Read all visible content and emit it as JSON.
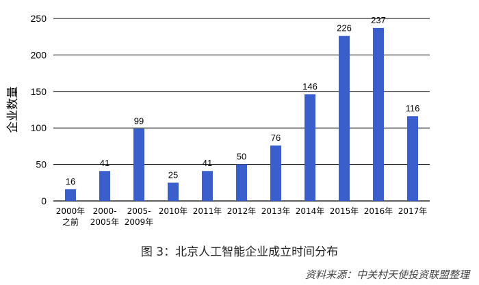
{
  "chart_data": {
    "type": "bar",
    "categories": [
      [
        "2000年",
        "之前"
      ],
      [
        "2000-",
        "2005年"
      ],
      [
        "2005-",
        "2009年"
      ],
      [
        "2010年"
      ],
      [
        "2011年"
      ],
      [
        "2012年"
      ],
      [
        "2013年"
      ],
      [
        "2014年"
      ],
      [
        "2015年"
      ],
      [
        "2016年"
      ],
      [
        "2017年"
      ]
    ],
    "values": [
      16,
      41,
      99,
      25,
      41,
      50,
      76,
      146,
      226,
      237,
      116
    ],
    "ylabel": "企业数量",
    "ylim": [
      0,
      250
    ],
    "yticks": [
      0,
      50,
      100,
      150,
      200,
      250
    ],
    "grid": true,
    "bar_color": "#3A5FCD"
  },
  "caption": "图 3：北京人工智能企业成立时间分布",
  "source": "资料来源：中关村天使投资联盟整理"
}
